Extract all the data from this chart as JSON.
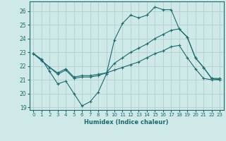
{
  "xlabel": "Humidex (Indice chaleur)",
  "background_color": "#cfe8e8",
  "grid_color": "#b0d0d0",
  "line_color": "#1a6b6b",
  "xlim": [
    -0.5,
    23.5
  ],
  "ylim": [
    18.8,
    26.7
  ],
  "yticks": [
    19,
    20,
    21,
    22,
    23,
    24,
    25,
    26
  ],
  "xticks": [
    0,
    1,
    2,
    3,
    4,
    5,
    6,
    7,
    8,
    9,
    10,
    11,
    12,
    13,
    14,
    15,
    16,
    17,
    18,
    19,
    20,
    21,
    22,
    23
  ],
  "series1_x": [
    0,
    1,
    2,
    3,
    4,
    5,
    6,
    7,
    8,
    9,
    10,
    11,
    12,
    13,
    14,
    15,
    16,
    17,
    18,
    19,
    20,
    21,
    22,
    23
  ],
  "series1_y": [
    22.9,
    22.5,
    21.6,
    20.7,
    20.9,
    20.0,
    19.1,
    19.4,
    20.1,
    21.4,
    23.9,
    25.1,
    25.7,
    25.5,
    25.7,
    26.3,
    26.1,
    26.1,
    24.7,
    24.1,
    22.6,
    21.9,
    21.1,
    21.1
  ],
  "series2_x": [
    0,
    1,
    2,
    3,
    4,
    5,
    6,
    7,
    8,
    9,
    10,
    11,
    12,
    13,
    14,
    15,
    16,
    17,
    18,
    19,
    20,
    21,
    22,
    23
  ],
  "series2_y": [
    22.9,
    22.4,
    21.9,
    21.4,
    21.7,
    21.1,
    21.2,
    21.2,
    21.3,
    21.5,
    21.7,
    21.9,
    22.1,
    22.3,
    22.6,
    22.9,
    23.1,
    23.4,
    23.5,
    22.6,
    21.8,
    21.1,
    21.0,
    21.0
  ],
  "series3_x": [
    0,
    1,
    2,
    3,
    4,
    5,
    6,
    7,
    8,
    9,
    10,
    11,
    12,
    13,
    14,
    15,
    16,
    17,
    18,
    19,
    20,
    21,
    22,
    23
  ],
  "series3_y": [
    22.9,
    22.4,
    21.9,
    21.5,
    21.8,
    21.2,
    21.3,
    21.3,
    21.4,
    21.5,
    22.2,
    22.6,
    23.0,
    23.3,
    23.6,
    24.0,
    24.3,
    24.6,
    24.7,
    24.1,
    22.6,
    21.9,
    21.1,
    21.0
  ]
}
